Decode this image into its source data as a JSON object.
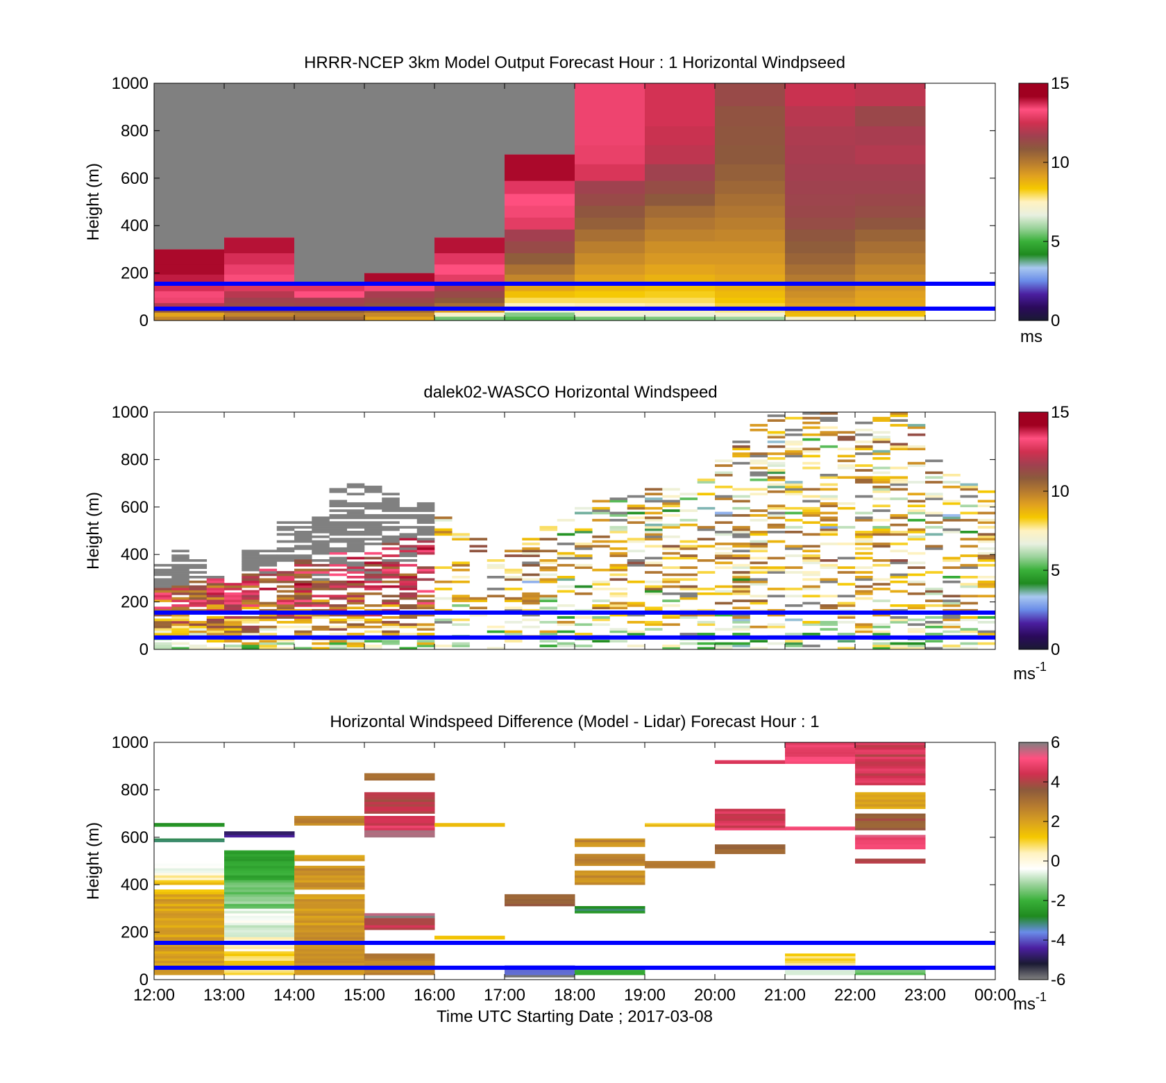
{
  "figure": {
    "xlabel": "Time UTC  Starting Date ; 2017-03-08",
    "time_ticks": [
      "12:00",
      "13:00",
      "14:00",
      "15:00",
      "16:00",
      "17:00",
      "18:00",
      "19:00",
      "20:00",
      "21:00",
      "22:00",
      "23:00",
      "00:00"
    ]
  },
  "colors": {
    "reference_lines": "#0000ff",
    "no_data_gray": "#808080",
    "speed_colormap": [
      "#1a1a33",
      "#2b0a5c",
      "#4b1fa0",
      "#6a8ce8",
      "#a8c8f0",
      "#1f8a1f",
      "#39b039",
      "#9ad29a",
      "#e8f0e0",
      "#fff2c0",
      "#f5c800",
      "#e0a020",
      "#b57a30",
      "#8c5a3c",
      "#a04050",
      "#d03050",
      "#ff5080",
      "#a00020",
      "#808080"
    ],
    "diff_colormap": [
      "#808080",
      "#1a1a33",
      "#4b1fa0",
      "#6a8ce8",
      "#1f8a1f",
      "#39b039",
      "#9ad29a",
      "#ffffff",
      "#fff2c0",
      "#f5c800",
      "#d8a020",
      "#b57a30",
      "#8c5a3c",
      "#d03050",
      "#ff5080",
      "#808080"
    ]
  },
  "chart_data": [
    {
      "type": "heatmap",
      "title": "HRRR-NCEP 3km Model Output   Forecast Hour : 1 Horizontal Windpseed",
      "xlabel": "",
      "ylabel": "Height (m)",
      "x_categories": [
        "12:00",
        "13:00",
        "14:00",
        "15:00",
        "16:00",
        "17:00",
        "18:00",
        "19:00",
        "20:00",
        "21:00",
        "22:00",
        "23:00"
      ],
      "ylim": [
        0,
        1000
      ],
      "yticks": [
        "0",
        "200",
        "400",
        "600",
        "800",
        "1000"
      ],
      "colorbar": {
        "ticks": [
          "0",
          "5",
          "10",
          "15"
        ],
        "range": [
          0,
          15
        ],
        "unit": "ms",
        "unit_sup": ""
      },
      "reference_lines_m": [
        50,
        155
      ],
      "model_columns": [
        {
          "time": "12:00",
          "top_m": 300,
          "levels_m": [
            10,
            25,
            45,
            65,
            85,
            110,
            140,
            175,
            215,
            260
          ],
          "speed_ms": [
            10.3,
            9.6,
            11.6,
            12.7,
            13.8,
            14.2,
            14.5,
            14.7,
            14.9,
            14.9
          ]
        },
        {
          "time": "13:00",
          "top_m": 350,
          "levels_m": [
            10,
            25,
            45,
            65,
            85,
            110,
            140,
            175,
            215,
            260,
            310
          ],
          "speed_ms": [
            11.1,
            10.3,
            11.8,
            12.0,
            12.3,
            12.8,
            13.5,
            14.0,
            14.3,
            14.5,
            14.8
          ]
        },
        {
          "time": "14:00",
          "top_m": 160,
          "levels_m": [
            10,
            25,
            45,
            65,
            85,
            110,
            140
          ],
          "speed_ms": [
            11.0,
            10.6,
            11.5,
            12.1,
            12.4,
            14.1,
            14.4
          ]
        },
        {
          "time": "15:00",
          "top_m": 200,
          "levels_m": [
            10,
            25,
            45,
            65,
            85,
            110,
            140,
            175
          ],
          "speed_ms": [
            9.6,
            10.2,
            11.2,
            11.7,
            12.1,
            12.5,
            14.2,
            14.9
          ]
        },
        {
          "time": "16:00",
          "top_m": 350,
          "levels_m": [
            10,
            25,
            45,
            65,
            85,
            110,
            140,
            175,
            215,
            260,
            310
          ],
          "speed_ms": [
            5.8,
            7.6,
            9.8,
            10.9,
            11.5,
            12.0,
            12.5,
            13.6,
            14.1,
            14.4,
            14.8
          ]
        },
        {
          "time": "17:00",
          "top_m": 700,
          "levels_m": [
            10,
            25,
            45,
            65,
            85,
            110,
            140,
            175,
            215,
            260,
            310,
            360,
            410,
            460,
            510,
            560,
            620
          ],
          "speed_ms": [
            5.5,
            6.0,
            7.2,
            7.9,
            8.4,
            9.0,
            9.6,
            10.3,
            10.8,
            11.4,
            12.0,
            12.4,
            13.6,
            13.9,
            14.1,
            14.4,
            14.9
          ]
        },
        {
          "time": "18:00",
          "top_m": 1000,
          "levels_m": [
            10,
            25,
            45,
            65,
            85,
            110,
            140,
            175,
            215,
            260,
            310,
            360,
            410,
            460,
            510,
            560,
            620,
            700,
            780,
            860,
            950
          ],
          "speed_ms": [
            5.8,
            7.3,
            7.8,
            8.0,
            8.4,
            8.8,
            9.2,
            9.6,
            9.9,
            10.2,
            10.5,
            10.9,
            11.3,
            11.6,
            12.0,
            12.3,
            13.4,
            13.7,
            13.8,
            13.8,
            13.8
          ]
        },
        {
          "time": "19:00",
          "top_m": 1000,
          "levels_m": [
            10,
            25,
            45,
            65,
            85,
            110,
            140,
            175,
            215,
            260,
            310,
            360,
            410,
            460,
            510,
            560,
            620,
            700,
            780,
            860,
            950
          ],
          "speed_ms": [
            5.9,
            7.2,
            7.8,
            8.1,
            8.4,
            8.7,
            9.0,
            9.3,
            9.6,
            9.9,
            10.1,
            10.4,
            10.7,
            11.0,
            11.5,
            11.9,
            12.3,
            12.9,
            13.1,
            13.3,
            13.3
          ]
        },
        {
          "time": "20:00",
          "top_m": 1000,
          "levels_m": [
            10,
            25,
            45,
            65,
            85,
            110,
            140,
            175,
            215,
            260,
            310,
            360,
            410,
            460,
            510,
            560,
            620,
            700,
            780,
            860,
            950
          ],
          "speed_ms": [
            6.2,
            7.5,
            8.2,
            8.6,
            8.9,
            9.1,
            9.3,
            9.5,
            9.7,
            9.9,
            10.1,
            10.3,
            10.5,
            10.7,
            10.9,
            11.1,
            11.3,
            11.5,
            11.6,
            11.7,
            12.0
          ]
        },
        {
          "time": "21:00",
          "top_m": 1000,
          "levels_m": [
            10,
            25,
            45,
            65,
            85,
            110,
            140,
            175,
            215,
            260,
            310,
            360,
            410,
            460,
            510,
            560,
            620,
            700,
            780,
            860,
            950
          ],
          "speed_ms": [
            7.5,
            9.1,
            9.5,
            9.7,
            9.9,
            10.1,
            10.3,
            10.6,
            10.9,
            11.2,
            11.4,
            11.6,
            11.9,
            12.1,
            12.2,
            12.3,
            12.4,
            12.5,
            12.6,
            12.8,
            13.1
          ]
        },
        {
          "time": "22:00",
          "top_m": 1000,
          "levels_m": [
            10,
            25,
            45,
            65,
            85,
            110,
            140,
            175,
            215,
            260,
            310,
            360,
            410,
            460,
            510,
            560,
            620,
            700,
            780,
            860,
            950
          ],
          "speed_ms": [
            7.6,
            9.0,
            9.3,
            9.5,
            9.6,
            9.7,
            9.9,
            10.1,
            10.3,
            10.6,
            10.9,
            11.2,
            11.6,
            11.9,
            12.1,
            12.3,
            12.4,
            12.7,
            12.5,
            12.1,
            12.9
          ]
        }
      ]
    },
    {
      "type": "heatmap",
      "title": "dalek02-WASCO  Horizontal Windspeed",
      "xlabel": "",
      "ylabel": "Height (m)",
      "ylim": [
        0,
        1000
      ],
      "yticks": [
        "0",
        "200",
        "400",
        "600",
        "800",
        "1000"
      ],
      "colorbar": {
        "ticks": [
          "0",
          "5",
          "10",
          "15"
        ],
        "range": [
          0,
          15
        ],
        "unit": "ms",
        "unit_sup": "-1"
      },
      "reference_lines_m": [
        50,
        155
      ],
      "lidar_profile": {
        "gate_height_m": 10,
        "time_bins": 48,
        "valid_top_m": [
          360,
          420,
          380,
          330,
          300,
          430,
          420,
          540,
          540,
          560,
          680,
          700,
          700,
          660,
          610,
          620,
          560,
          540,
          500,
          440,
          460,
          480,
          520,
          560,
          600,
          640,
          650,
          660,
          690,
          700,
          720,
          760,
          820,
          880,
          950,
          990,
          1000,
          1000,
          1000,
          1000,
          1000,
          980,
          1000,
          960,
          800,
          760,
          700,
          680
        ],
        "slow_fast_profile_ms": [
          [
            0,
            7
          ],
          [
            100,
            10
          ],
          [
            200,
            12
          ],
          [
            400,
            14
          ],
          [
            600,
            15
          ],
          [
            1000,
            15
          ]
        ],
        "afternoon_profile_ms": [
          [
            0,
            6
          ],
          [
            100,
            8
          ],
          [
            200,
            9
          ],
          [
            400,
            9.5
          ],
          [
            600,
            8.5
          ],
          [
            800,
            9
          ],
          [
            1000,
            10
          ]
        ],
        "no_data_above_ms": 15
      }
    },
    {
      "type": "heatmap",
      "title": "Horizontal Windspeed Difference (Model - Lidar) Forecast Hour : 1",
      "xlabel": "Time UTC  Starting Date ; 2017-03-08",
      "ylabel": "Height (m)",
      "x_categories": [
        "12:00",
        "13:00",
        "14:00",
        "15:00",
        "16:00",
        "17:00",
        "18:00",
        "19:00",
        "20:00",
        "21:00",
        "22:00",
        "23:00"
      ],
      "ylim": [
        0,
        1000
      ],
      "yticks": [
        "0",
        "200",
        "400",
        "600",
        "800",
        "1000"
      ],
      "colorbar": {
        "ticks": [
          "-6",
          "-4",
          "-2",
          "0",
          "2",
          "4",
          "6"
        ],
        "range": [
          -6,
          6
        ],
        "unit": "ms",
        "unit_sup": "-1"
      },
      "reference_lines_m": [
        50,
        155
      ],
      "diff_columns": [
        {
          "time": "12:00",
          "bands": [
            [
              20,
              360,
              2.0
            ],
            [
              360,
              380,
              1.5
            ],
            [
              400,
              420,
              1.4
            ],
            [
              420,
              450,
              0.3
            ],
            [
              450,
              480,
              -0.4
            ],
            [
              480,
              500,
              -0.7
            ],
            [
              580,
              595,
              -3.0
            ],
            [
              645,
              660,
              -2.8
            ]
          ]
        },
        {
          "time": "13:00",
          "bands": [
            [
              20,
              60,
              0.6
            ],
            [
              60,
              120,
              1.0
            ],
            [
              120,
              180,
              0.2
            ],
            [
              180,
              300,
              -0.6
            ],
            [
              300,
              420,
              -1.4
            ],
            [
              420,
              520,
              -2.2
            ],
            [
              520,
              545,
              -2.6
            ],
            [
              600,
              625,
              -4.6
            ]
          ]
        },
        {
          "time": "14:00",
          "bands": [
            [
              20,
              360,
              2.2
            ],
            [
              380,
              480,
              2.3
            ],
            [
              500,
              525,
              1.8
            ],
            [
              650,
              690,
              2.5
            ]
          ]
        },
        {
          "time": "15:00",
          "bands": [
            [
              20,
              110,
              2.6
            ],
            [
              210,
              260,
              4.3
            ],
            [
              260,
              280,
              6.0
            ],
            [
              600,
              630,
              6.0
            ],
            [
              630,
              690,
              4.6
            ],
            [
              700,
              790,
              4.1
            ],
            [
              840,
              870,
              3.4
            ]
          ]
        },
        {
          "time": "16:00",
          "bands": [
            [
              170,
              185,
              1.1
            ],
            [
              645,
              660,
              1.2
            ]
          ]
        },
        {
          "time": "17:00",
          "bands": [
            [
              10,
              20,
              -5.5
            ],
            [
              20,
              60,
              -4.0
            ],
            [
              310,
              360,
              3.4
            ]
          ]
        },
        {
          "time": "18:00",
          "bands": [
            [
              20,
              50,
              -2.0
            ],
            [
              280,
              310,
              -2.8
            ],
            [
              400,
              460,
              2.5
            ],
            [
              480,
              530,
              2.4
            ],
            [
              560,
              595,
              2.4
            ]
          ]
        },
        {
          "time": "19:00",
          "bands": [
            [
              470,
              500,
              2.6
            ],
            [
              645,
              660,
              1.3
            ]
          ]
        },
        {
          "time": "20:00",
          "bands": [
            [
              530,
              570,
              3.4
            ],
            [
              630,
              720,
              4.6
            ],
            [
              910,
              925,
              4.7
            ]
          ]
        },
        {
          "time": "21:00",
          "bands": [
            [
              20,
              40,
              -0.8
            ],
            [
              60,
              110,
              0.9
            ],
            [
              630,
              645,
              5.0
            ],
            [
              910,
              1000,
              5.0
            ]
          ]
        },
        {
          "time": "22:00",
          "bands": [
            [
              20,
              50,
              -1.7
            ],
            [
              490,
              510,
              4.1
            ],
            [
              550,
              610,
              5.0
            ],
            [
              630,
              700,
              3.6
            ],
            [
              720,
              790,
              2.1
            ],
            [
              820,
              1000,
              4.4
            ]
          ]
        }
      ]
    }
  ]
}
